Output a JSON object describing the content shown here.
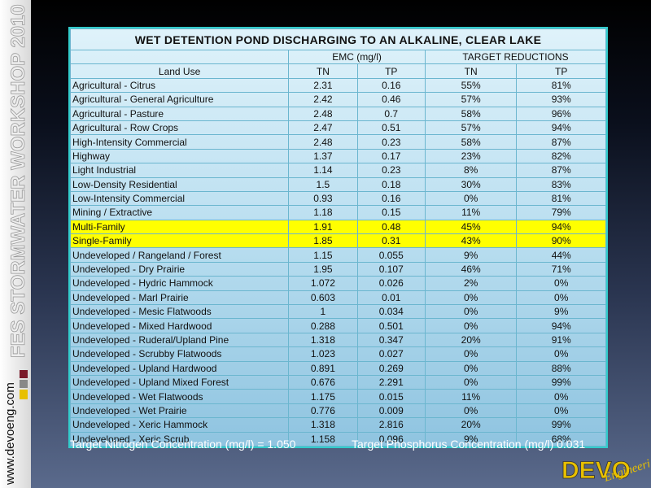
{
  "sidebar": {
    "title": "FES STORMWATER WORKSHOP 2010",
    "url": "www.devoeng.com"
  },
  "table": {
    "title": "WET DETENTION POND DISCHARGING TO AN ALKALINE, CLEAR LAKE",
    "group_headers": [
      "EMC (mg/l)",
      "TARGET REDUCTIONS"
    ],
    "column_headers": [
      "Land Use",
      "TN",
      "TP",
      "TN",
      "TP"
    ],
    "rows": [
      [
        "Agricultural - Citrus",
        "2.31",
        "0.16",
        "55%",
        "81%"
      ],
      [
        "Agricultural - General Agriculture",
        "2.42",
        "0.46",
        "57%",
        "93%"
      ],
      [
        "Agricultural - Pasture",
        "2.48",
        "0.7",
        "58%",
        "96%"
      ],
      [
        "Agricultural - Row Crops",
        "2.47",
        "0.51",
        "57%",
        "94%"
      ],
      [
        "High-Intensity Commercial",
        "2.48",
        "0.23",
        "58%",
        "87%"
      ],
      [
        "Highway",
        "1.37",
        "0.17",
        "23%",
        "82%"
      ],
      [
        "Light Industrial",
        "1.14",
        "0.23",
        "8%",
        "87%"
      ],
      [
        "Low-Density Residential",
        "1.5",
        "0.18",
        "30%",
        "83%"
      ],
      [
        "Low-Intensity Commercial",
        "0.93",
        "0.16",
        "0%",
        "81%"
      ],
      [
        "Mining / Extractive",
        "1.18",
        "0.15",
        "11%",
        "79%"
      ],
      [
        "Multi-Family",
        "1.91",
        "0.48",
        "45%",
        "94%"
      ],
      [
        "Single-Family",
        "1.85",
        "0.31",
        "43%",
        "90%"
      ],
      [
        "Undeveloped / Rangeland / Forest",
        "1.15",
        "0.055",
        "9%",
        "44%"
      ],
      [
        "Undeveloped - Dry Prairie",
        "1.95",
        "0.107",
        "46%",
        "71%"
      ],
      [
        "Undeveloped - Hydric Hammock",
        "1.072",
        "0.026",
        "2%",
        "0%"
      ],
      [
        "Undeveloped - Marl Prairie",
        "0.603",
        "0.01",
        "0%",
        "0%"
      ],
      [
        "Undeveloped - Mesic Flatwoods",
        "1",
        "0.034",
        "0%",
        "9%"
      ],
      [
        "Undeveloped - Mixed Hardwood",
        "0.288",
        "0.501",
        "0%",
        "94%"
      ],
      [
        "Undeveloped - Ruderal/Upland Pine",
        "1.318",
        "0.347",
        "20%",
        "91%"
      ],
      [
        "Undeveloped - Scrubby Flatwoods",
        "1.023",
        "0.027",
        "0%",
        "0%"
      ],
      [
        "Undeveloped - Upland Hardwood",
        "0.891",
        "0.269",
        "0%",
        "88%"
      ],
      [
        "Undeveloped - Upland Mixed Forest",
        "0.676",
        "2.291",
        "0%",
        "99%"
      ],
      [
        "Undeveloped - Wet Flatwoods",
        "1.175",
        "0.015",
        "11%",
        "0%"
      ],
      [
        "Undeveloped - Wet Prairie",
        "0.776",
        "0.009",
        "0%",
        "0%"
      ],
      [
        "Undeveloped - Xeric Hammock",
        "1.318",
        "2.816",
        "20%",
        "99%"
      ],
      [
        "Undeveloped - Xeric Scrub",
        "1.158",
        "0.096",
        "9%",
        "68%"
      ]
    ]
  },
  "footer": {
    "nitrogen": "Target Nitrogen Concentration (mg/l) = 1.050",
    "phosphorus": "Target Phosphorus Concentration (mg/l) 0.031"
  },
  "logo": {
    "name": "DEVO",
    "tagline": "Engineering"
  }
}
